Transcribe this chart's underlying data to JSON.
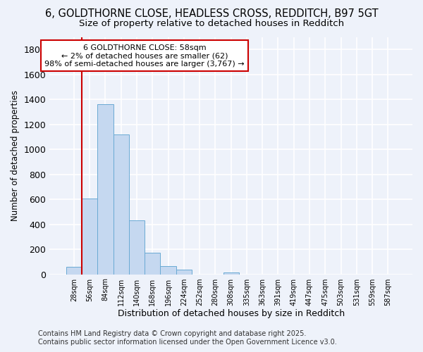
{
  "title_line1": "6, GOLDTHORNE CLOSE, HEADLESS CROSS, REDDITCH, B97 5GT",
  "title_line2": "Size of property relative to detached houses in Redditch",
  "xlabel": "Distribution of detached houses by size in Redditch",
  "ylabel": "Number of detached properties",
  "categories": [
    "28sqm",
    "56sqm",
    "84sqm",
    "112sqm",
    "140sqm",
    "168sqm",
    "196sqm",
    "224sqm",
    "252sqm",
    "280sqm",
    "308sqm",
    "335sqm",
    "363sqm",
    "391sqm",
    "419sqm",
    "447sqm",
    "475sqm",
    "503sqm",
    "531sqm",
    "559sqm",
    "587sqm"
  ],
  "values": [
    62,
    609,
    1361,
    1120,
    430,
    175,
    65,
    35,
    0,
    0,
    15,
    0,
    0,
    0,
    0,
    0,
    0,
    0,
    0,
    0,
    0
  ],
  "bar_color": "#c5d8f0",
  "bar_edge_color": "#6aaad4",
  "ylim": [
    0,
    1900
  ],
  "yticks": [
    0,
    200,
    400,
    600,
    800,
    1000,
    1200,
    1400,
    1600,
    1800
  ],
  "vline_x_index": 1,
  "vline_color": "#cc0000",
  "annotation_text": "6 GOLDTHORNE CLOSE: 58sqm\n← 2% of detached houses are smaller (62)\n98% of semi-detached houses are larger (3,767) →",
  "annotation_box_color": "#ffffff",
  "annotation_edge_color": "#cc0000",
  "footer_line1": "Contains HM Land Registry data © Crown copyright and database right 2025.",
  "footer_line2": "Contains public sector information licensed under the Open Government Licence v3.0.",
  "bg_color": "#eef2fa",
  "grid_color": "#ffffff",
  "title_fontsize": 10.5,
  "subtitle_fontsize": 9.5,
  "annotation_fontsize": 8,
  "footer_fontsize": 7
}
